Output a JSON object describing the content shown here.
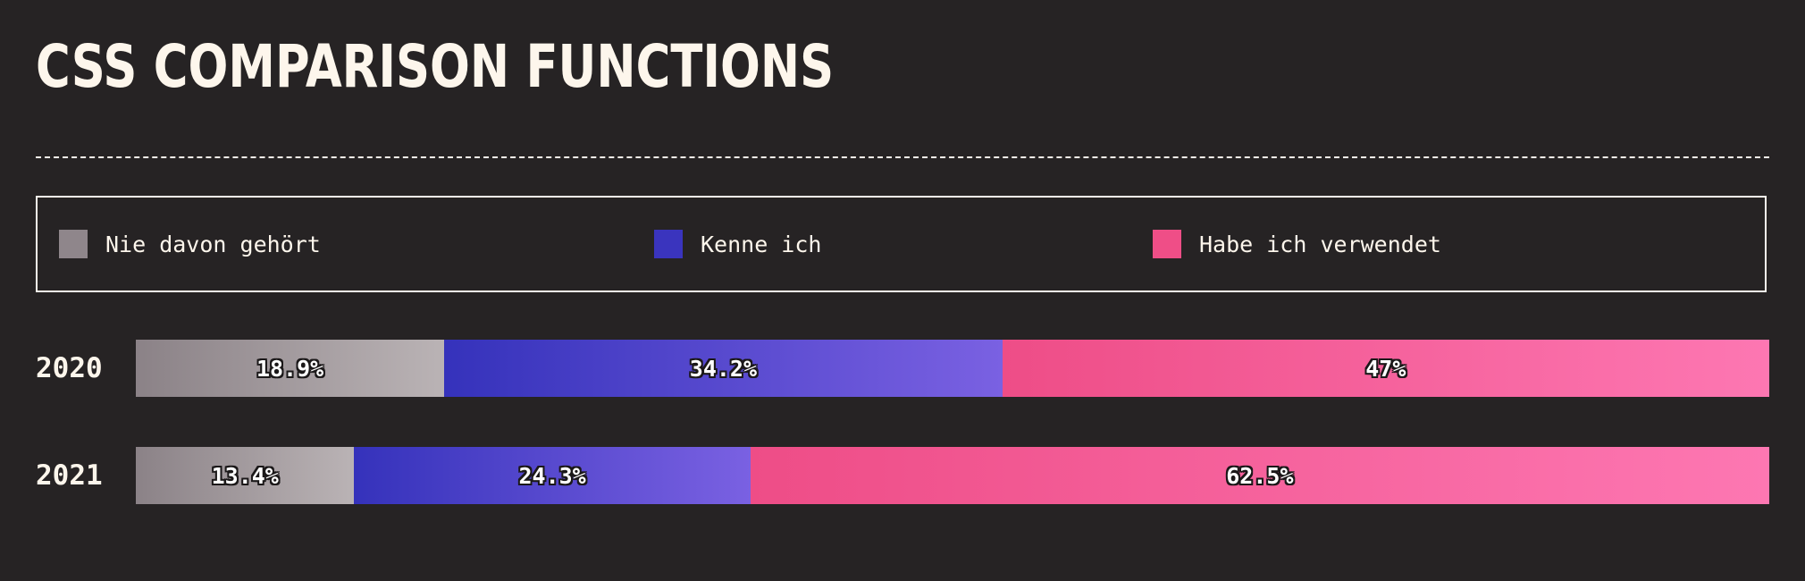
{
  "title": "CSS COMPARISON FUNCTIONS",
  "legend": [
    {
      "label": "Nie davon gehört",
      "color": "#8f868b"
    },
    {
      "label": "Kenne ich",
      "color": "#3a34be"
    },
    {
      "label": "Habe ich verwendet",
      "color": "#ef4e87"
    }
  ],
  "chart_data": {
    "type": "bar",
    "orientation": "horizontal",
    "stacked": true,
    "normalized": true,
    "title": "CSS COMPARISON FUNCTIONS",
    "categories": [
      "2020",
      "2021"
    ],
    "series": [
      {
        "name": "Nie davon gehört",
        "values": [
          18.9,
          13.4
        ],
        "labels": [
          "18.9%",
          "13.4%"
        ],
        "gradient": [
          "#8b8287",
          "#bab3b5"
        ]
      },
      {
        "name": "Kenne ich",
        "values": [
          34.2,
          24.3
        ],
        "labels": [
          "34.2%",
          "24.3%"
        ],
        "gradient": [
          "#3532bb",
          "#7a61e2"
        ]
      },
      {
        "name": "Habe ich verwendet",
        "values": [
          47,
          62.5
        ],
        "labels": [
          "47%",
          "62.5%"
        ],
        "gradient": [
          "#ee4d87",
          "#fd77b2"
        ]
      }
    ],
    "xlim": [
      0,
      100
    ],
    "legend_position": "top",
    "grid": false
  }
}
